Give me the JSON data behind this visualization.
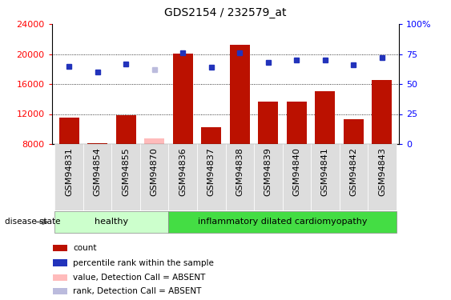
{
  "title": "GDS2154 / 232579_at",
  "samples": [
    "GSM94831",
    "GSM94854",
    "GSM94855",
    "GSM94870",
    "GSM94836",
    "GSM94837",
    "GSM94838",
    "GSM94839",
    "GSM94840",
    "GSM94841",
    "GSM94842",
    "GSM94843"
  ],
  "bar_values": [
    11500,
    8100,
    11800,
    8700,
    20100,
    10200,
    21200,
    13700,
    13700,
    15000,
    11300,
    16500
  ],
  "bar_absent": [
    false,
    false,
    false,
    true,
    false,
    false,
    false,
    false,
    false,
    false,
    false,
    false
  ],
  "dot_percentiles": [
    65,
    60,
    67,
    62,
    76,
    64,
    76,
    68,
    70,
    70,
    66,
    72
  ],
  "dot_absent": [
    false,
    false,
    false,
    true,
    false,
    false,
    false,
    false,
    false,
    false,
    false,
    false
  ],
  "ylim_left": [
    8000,
    24000
  ],
  "ylim_right": [
    0,
    100
  ],
  "yticks_left": [
    8000,
    12000,
    16000,
    20000,
    24000
  ],
  "yticks_right": [
    0,
    25,
    50,
    75,
    100
  ],
  "ytick_labels_right": [
    "0",
    "25",
    "50",
    "75",
    "100%"
  ],
  "group_labels": [
    "healthy",
    "inflammatory dilated cardiomyopathy"
  ],
  "n_healthy": 4,
  "n_idcm": 8,
  "bar_color": "#bb1100",
  "bar_absent_color": "#ffbbbb",
  "dot_color": "#2233bb",
  "dot_absent_color": "#bbbbdd",
  "healthy_bg": "#ccffcc",
  "idcm_bg": "#44dd44",
  "label_fontsize": 8,
  "tick_fontsize": 8,
  "title_fontsize": 10,
  "disease_label": "disease state",
  "legend_items": [
    {
      "label": "count",
      "color": "#bb1100"
    },
    {
      "label": "percentile rank within the sample",
      "color": "#2233bb"
    },
    {
      "label": "value, Detection Call = ABSENT",
      "color": "#ffbbbb"
    },
    {
      "label": "rank, Detection Call = ABSENT",
      "color": "#bbbbdd"
    }
  ]
}
